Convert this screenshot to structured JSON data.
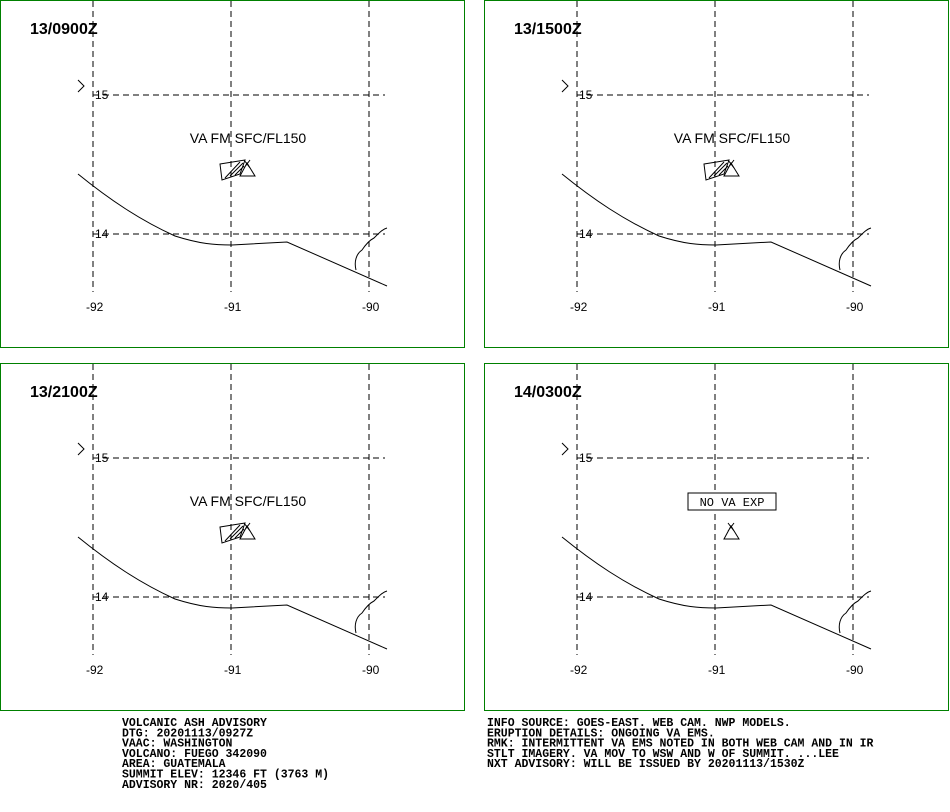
{
  "panels": [
    {
      "time": "13/0900Z",
      "annotation": "VA FM SFC/FL150"
    },
    {
      "time": "13/1500Z",
      "annotation": "VA FM SFC/FL150"
    },
    {
      "time": "13/2100Z",
      "annotation": "VA FM SFC/FL150"
    },
    {
      "time": "14/0300Z",
      "annotation": "NO VA EXP",
      "boxed": true
    }
  ],
  "grid": {
    "lat_labels": [
      "15",
      "14"
    ],
    "lon_labels": [
      "-92",
      "-91",
      "-90"
    ]
  },
  "advisory_left": [
    "VOLCANIC ASH ADVISORY",
    "DTG: 20201113/0927Z",
    "VAAC: WASHINGTON",
    "VOLCANO: FUEGO 342090",
    "AREA: GUATEMALA",
    "SUMMIT ELEV: 12346 FT (3763 M)",
    "ADVISORY NR: 2020/405"
  ],
  "advisory_right": [
    "INFO SOURCE: GOES-EAST. WEB CAM. NWP MODELS.",
    "ERUPTION DETAILS: ONGOING VA EMS.",
    "RMK: INTERMITTENT VA EMS NOTED IN BOTH WEB CAM AND IN IR",
    "STLT IMAGERY. VA MOV TO WSW AND W OF SUMMIT. ...LEE",
    "NXT ADVISORY: WILL BE ISSUED BY 20201113/1530Z"
  ]
}
